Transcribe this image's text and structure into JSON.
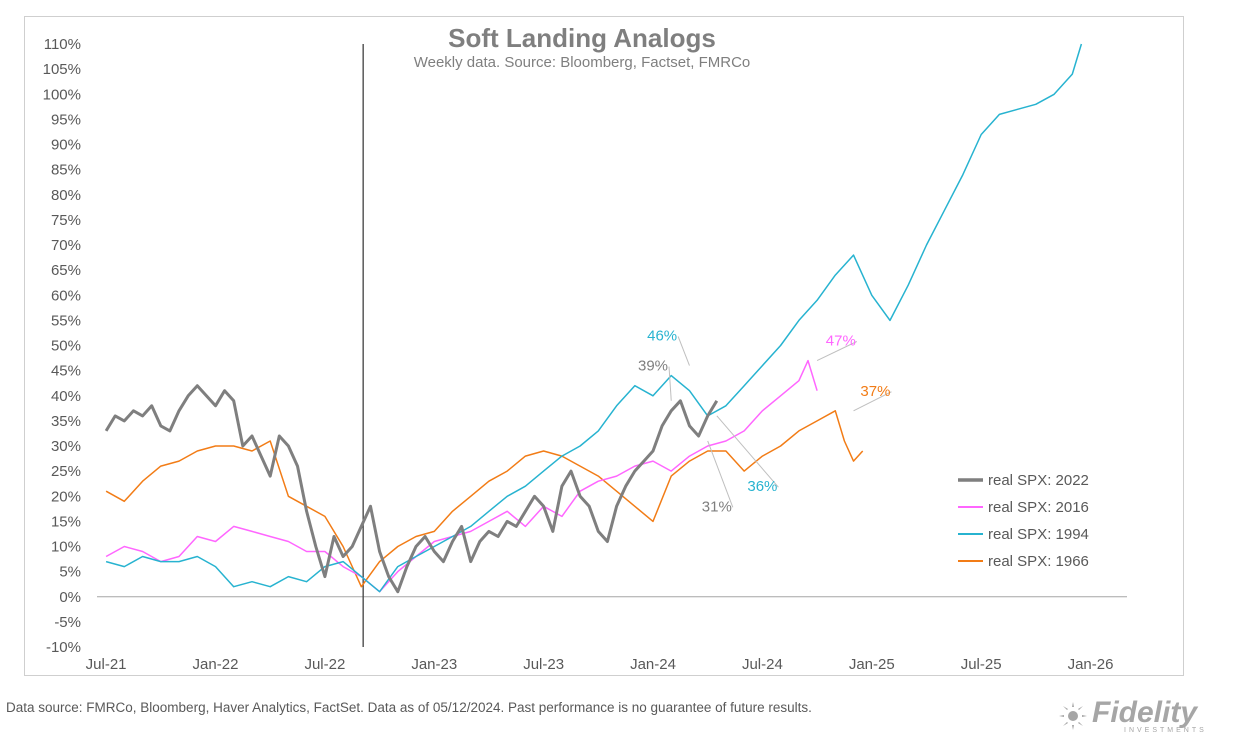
{
  "footer_text": "Data source: FMRCo, Bloomberg, Haver Analytics, FactSet. Data as of 05/12/2024. Past performance is no guarantee of future results.",
  "logo": {
    "name": "Fidelity",
    "sub": "INVESTMENTS"
  },
  "chart_data": {
    "type": "line",
    "title": "Soft Landing Analogs",
    "subtitle": "Weekly data.  Source: Bloomberg, Factset, FMRCo",
    "xlabel": "",
    "ylabel": "",
    "x_unit": "months since Jul-21",
    "xlim": [
      -0.5,
      56
    ],
    "ylim": [
      -10,
      110
    ],
    "ytick_values": [
      -10,
      -5,
      0,
      5,
      10,
      15,
      20,
      25,
      30,
      35,
      40,
      45,
      50,
      55,
      60,
      65,
      70,
      75,
      80,
      85,
      90,
      95,
      100,
      105,
      110
    ],
    "ytick_labels": [
      "-10%",
      "-5%",
      "0%",
      "5%",
      "10%",
      "15%",
      "20%",
      "25%",
      "30%",
      "35%",
      "40%",
      "45%",
      "50%",
      "55%",
      "60%",
      "65%",
      "70%",
      "75%",
      "80%",
      "85%",
      "90%",
      "95%",
      "100%",
      "105%",
      "110%"
    ],
    "xtick_values": [
      0,
      6,
      12,
      18,
      24,
      30,
      36,
      42,
      48,
      54
    ],
    "xtick_labels": [
      "Jul-21",
      "Jan-22",
      "Jul-22",
      "Jan-23",
      "Jul-23",
      "Jan-24",
      "Jul-24",
      "Jan-25",
      "Jul-25",
      "Jan-26"
    ],
    "vline_x": 14.1,
    "legend_position": "right",
    "series": [
      {
        "name": "real SPX: 2022",
        "color": "#7f7f7f",
        "width": 3,
        "x": [
          0,
          0.5,
          1,
          1.5,
          2,
          2.5,
          3,
          3.5,
          4,
          4.5,
          5,
          5.5,
          6,
          6.5,
          7,
          7.5,
          8,
          8.5,
          9,
          9.5,
          10,
          10.5,
          11,
          11.5,
          12,
          12.5,
          13,
          13.5,
          14,
          14.5,
          15,
          15.5,
          16,
          16.5,
          17,
          17.5,
          18,
          18.5,
          19,
          19.5,
          20,
          20.5,
          21,
          21.5,
          22,
          22.5,
          23,
          23.5,
          24,
          24.5,
          25,
          25.5,
          26,
          26.5,
          27,
          27.5,
          28,
          28.5,
          29,
          29.5,
          30,
          30.5,
          31,
          31.5,
          32,
          32.5,
          33,
          33.5
        ],
        "y": [
          33,
          36,
          35,
          37,
          36,
          38,
          34,
          33,
          37,
          40,
          42,
          40,
          38,
          41,
          39,
          30,
          32,
          28,
          24,
          32,
          30,
          26,
          17,
          10,
          4,
          12,
          8,
          10,
          14,
          18,
          9,
          4,
          1,
          6,
          10,
          12,
          9,
          7,
          11,
          14,
          7,
          11,
          13,
          12,
          15,
          14,
          17,
          20,
          18,
          13,
          22,
          25,
          20,
          18,
          13,
          11,
          18,
          22,
          25,
          27,
          29,
          34,
          37,
          39,
          34,
          32,
          36,
          39
        ]
      },
      {
        "name": "real SPX: 2016",
        "color": "#ff66ff",
        "width": 1.5,
        "x": [
          0,
          1,
          2,
          3,
          4,
          5,
          6,
          7,
          8,
          9,
          10,
          11,
          12,
          13,
          14,
          15,
          16,
          17,
          18,
          19,
          20,
          21,
          22,
          23,
          24,
          25,
          26,
          27,
          28,
          29,
          30,
          31,
          32,
          33,
          34,
          35,
          36,
          37,
          38,
          38.5,
          39
        ],
        "y": [
          8,
          10,
          9,
          7,
          8,
          12,
          11,
          14,
          13,
          12,
          11,
          9,
          9,
          6,
          4,
          1,
          5,
          8,
          11,
          12,
          13,
          15,
          17,
          14,
          18,
          16,
          21,
          23,
          24,
          26,
          27,
          25,
          28,
          30,
          31,
          33,
          37,
          40,
          43,
          47,
          41
        ]
      },
      {
        "name": "real SPX: 1994",
        "color": "#27b3d0",
        "width": 1.5,
        "x": [
          0,
          1,
          2,
          3,
          4,
          5,
          6,
          7,
          8,
          9,
          10,
          11,
          12,
          13,
          14,
          15,
          16,
          17,
          18,
          19,
          20,
          21,
          22,
          23,
          24,
          25,
          26,
          27,
          28,
          29,
          30,
          31,
          32,
          33,
          34,
          35,
          36,
          37,
          38,
          39,
          40,
          41,
          42,
          43,
          44,
          45,
          46,
          47,
          48,
          49,
          50,
          51,
          52,
          53,
          53.5
        ],
        "y": [
          7,
          6,
          8,
          7,
          7,
          8,
          6,
          2,
          3,
          2,
          4,
          3,
          6,
          7,
          4,
          1,
          6,
          8,
          10,
          12,
          14,
          17,
          20,
          22,
          25,
          28,
          30,
          33,
          38,
          42,
          40,
          44,
          41,
          36,
          38,
          42,
          46,
          50,
          55,
          59,
          64,
          68,
          60,
          55,
          62,
          70,
          77,
          84,
          92,
          96,
          97,
          98,
          100,
          104,
          110
        ]
      },
      {
        "name": "real SPX: 1966",
        "color": "#f27c16",
        "width": 1.5,
        "x": [
          0,
          1,
          2,
          3,
          4,
          5,
          6,
          7,
          8,
          9,
          10,
          11,
          12,
          13,
          14,
          15,
          16,
          17,
          18,
          19,
          20,
          21,
          22,
          23,
          24,
          25,
          26,
          27,
          28,
          29,
          30,
          31,
          32,
          33,
          34,
          35,
          36,
          37,
          38,
          39,
          40,
          40.5,
          41,
          41.5
        ],
        "y": [
          21,
          19,
          23,
          26,
          27,
          29,
          30,
          30,
          29,
          31,
          20,
          18,
          16,
          10,
          2,
          7,
          10,
          12,
          13,
          17,
          20,
          23,
          25,
          28,
          29,
          28,
          26,
          24,
          21,
          18,
          15,
          24,
          27,
          29,
          29,
          25,
          28,
          30,
          33,
          35,
          37,
          31,
          27,
          29
        ]
      }
    ],
    "annotations": [
      {
        "text": "46%",
        "color": "#27b3d0",
        "x": 30.5,
        "y": 51,
        "leader_to": [
          32,
          46
        ]
      },
      {
        "text": "39%",
        "color": "#7f7f7f",
        "x": 30.0,
        "y": 45,
        "leader_to": [
          31,
          39
        ]
      },
      {
        "text": "47%",
        "color": "#ff66ff",
        "x": 40.3,
        "y": 50,
        "leader_to": [
          39,
          47
        ]
      },
      {
        "text": "37%",
        "color": "#f27c16",
        "x": 42.2,
        "y": 40,
        "leader_to": [
          41,
          37
        ]
      },
      {
        "text": "36%",
        "color": "#27b3d0",
        "x": 36.0,
        "y": 21,
        "leader_to": [
          33.5,
          36
        ]
      },
      {
        "text": "31%",
        "color": "#7f7f7f",
        "x": 33.5,
        "y": 17,
        "leader_to": [
          33,
          31
        ]
      }
    ]
  }
}
